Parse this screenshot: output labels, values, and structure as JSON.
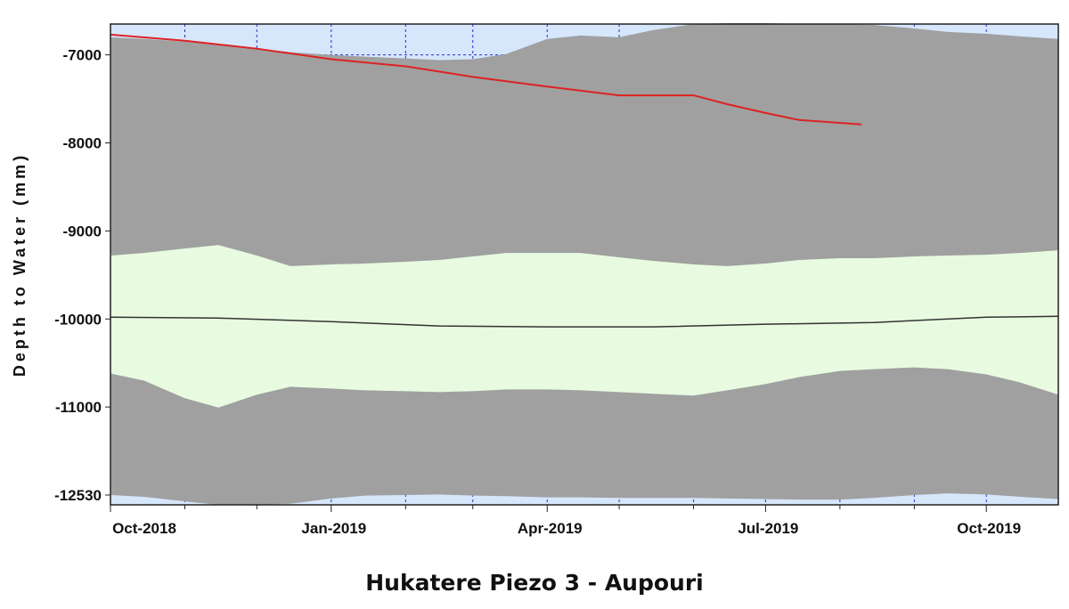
{
  "chart_data": {
    "type": "area",
    "title": "Hukatere Piezo 3 - Aupouri",
    "ylabel": "Depth to Water (mm)",
    "xlabel": "",
    "x_ticks": [
      "Oct-2018",
      "Jan-2019",
      "Apr-2019",
      "Jul-2019",
      "Oct-2019"
    ],
    "x_range": [
      "2018-10-01",
      "2019-10-31"
    ],
    "y_ticks": [
      -7000,
      -8000,
      -9000,
      -10000,
      -11000,
      -12530
    ],
    "y_scale": "piecewise-linear (-12530 tick spaced like -12000)",
    "ylim": [
      -12700,
      -6650
    ],
    "grid": true,
    "grid_style": "dotted blue, y=-7000 and x minor ticks",
    "colors": {
      "background": "#d6e6fb",
      "outer_band": "#a0a0a0",
      "inner_band": "#e8fbe0",
      "median": "#333333",
      "current": "#dd2222",
      "grid": "#2233cc"
    },
    "series": [
      {
        "role": "outer-band-upper",
        "x": [
          "2018-10-01",
          "2018-10-15",
          "2018-11-01",
          "2018-11-15",
          "2018-12-01",
          "2018-12-15",
          "2019-01-01",
          "2019-01-15",
          "2019-02-01",
          "2019-02-15",
          "2019-03-01",
          "2019-03-15",
          "2019-04-01",
          "2019-04-15",
          "2019-05-01",
          "2019-05-15",
          "2019-06-01",
          "2019-06-15",
          "2019-07-01",
          "2019-07-15",
          "2019-08-01",
          "2019-08-15",
          "2019-09-01",
          "2019-09-15",
          "2019-10-01",
          "2019-10-15",
          "2019-10-31"
        ],
        "values": [
          -6800,
          -6820,
          -6850,
          -6880,
          -6930,
          -6970,
          -7000,
          -7020,
          -7040,
          -7060,
          -7050,
          -6990,
          -6820,
          -6780,
          -6800,
          -6720,
          -6650,
          -6640,
          -6640,
          -6650,
          -6650,
          -6660,
          -6700,
          -6740,
          -6760,
          -6790,
          -6820
        ]
      },
      {
        "role": "outer-band-lower",
        "x": [
          "2018-10-01",
          "2018-10-15",
          "2018-11-01",
          "2018-11-15",
          "2018-12-01",
          "2018-12-15",
          "2019-01-01",
          "2019-01-15",
          "2019-02-01",
          "2019-02-15",
          "2019-03-01",
          "2019-03-15",
          "2019-04-01",
          "2019-04-15",
          "2019-05-01",
          "2019-05-15",
          "2019-06-01",
          "2019-06-15",
          "2019-07-01",
          "2019-07-15",
          "2019-08-01",
          "2019-08-15",
          "2019-09-01",
          "2019-09-15",
          "2019-10-01",
          "2019-10-15",
          "2019-10-31"
        ],
        "values": [
          -12530,
          -12560,
          -12640,
          -12700,
          -12700,
          -12680,
          -12590,
          -12540,
          -12530,
          -12520,
          -12540,
          -12550,
          -12570,
          -12570,
          -12580,
          -12580,
          -12580,
          -12590,
          -12600,
          -12610,
          -12610,
          -12580,
          -12530,
          -12500,
          -12520,
          -12560,
          -12600
        ]
      },
      {
        "role": "inner-band-upper",
        "x": [
          "2018-10-01",
          "2018-10-15",
          "2018-11-01",
          "2018-11-15",
          "2018-12-01",
          "2018-12-15",
          "2019-01-01",
          "2019-01-15",
          "2019-02-01",
          "2019-02-15",
          "2019-03-01",
          "2019-03-15",
          "2019-04-01",
          "2019-04-15",
          "2019-05-01",
          "2019-05-15",
          "2019-06-01",
          "2019-06-15",
          "2019-07-01",
          "2019-07-15",
          "2019-08-01",
          "2019-08-15",
          "2019-09-01",
          "2019-09-15",
          "2019-10-01",
          "2019-10-15",
          "2019-10-31"
        ],
        "values": [
          -9280,
          -9250,
          -9200,
          -9160,
          -9280,
          -9400,
          -9380,
          -9370,
          -9350,
          -9330,
          -9290,
          -9250,
          -9250,
          -9250,
          -9300,
          -9340,
          -9380,
          -9400,
          -9370,
          -9330,
          -9310,
          -9310,
          -9290,
          -9280,
          -9270,
          -9250,
          -9220
        ]
      },
      {
        "role": "inner-band-lower",
        "x": [
          "2018-10-01",
          "2018-10-15",
          "2018-11-01",
          "2018-11-15",
          "2018-12-01",
          "2018-12-15",
          "2019-01-01",
          "2019-01-15",
          "2019-02-01",
          "2019-02-15",
          "2019-03-01",
          "2019-03-15",
          "2019-04-01",
          "2019-04-15",
          "2019-05-01",
          "2019-05-15",
          "2019-06-01",
          "2019-06-15",
          "2019-07-01",
          "2019-07-15",
          "2019-08-01",
          "2019-08-15",
          "2019-09-01",
          "2019-09-15",
          "2019-10-01",
          "2019-10-15",
          "2019-10-31"
        ],
        "values": [
          -10620,
          -10700,
          -10900,
          -11010,
          -10860,
          -10770,
          -10790,
          -10810,
          -10820,
          -10830,
          -10820,
          -10800,
          -10800,
          -10810,
          -10830,
          -10850,
          -10870,
          -10810,
          -10740,
          -10660,
          -10590,
          -10570,
          -10550,
          -10570,
          -10630,
          -10720,
          -10860
        ]
      },
      {
        "role": "median",
        "x": [
          "2018-10-01",
          "2018-11-15",
          "2019-01-01",
          "2019-02-15",
          "2019-04-01",
          "2019-05-15",
          "2019-07-01",
          "2019-08-15",
          "2019-10-01",
          "2019-10-31"
        ],
        "values": [
          -9980,
          -9990,
          -10030,
          -10080,
          -10090,
          -10090,
          -10060,
          -10040,
          -9980,
          -9970
        ]
      },
      {
        "role": "current",
        "x": [
          "2018-10-01",
          "2018-11-01",
          "2018-12-01",
          "2019-01-01",
          "2019-02-01",
          "2019-03-01",
          "2019-04-01",
          "2019-05-01",
          "2019-06-01",
          "2019-06-15",
          "2019-07-01",
          "2019-07-15",
          "2019-08-10"
        ],
        "values": [
          -6770,
          -6840,
          -6930,
          -7050,
          -7130,
          -7250,
          -7360,
          -7460,
          -7460,
          -7560,
          -7660,
          -7740,
          -7790
        ]
      }
    ]
  }
}
